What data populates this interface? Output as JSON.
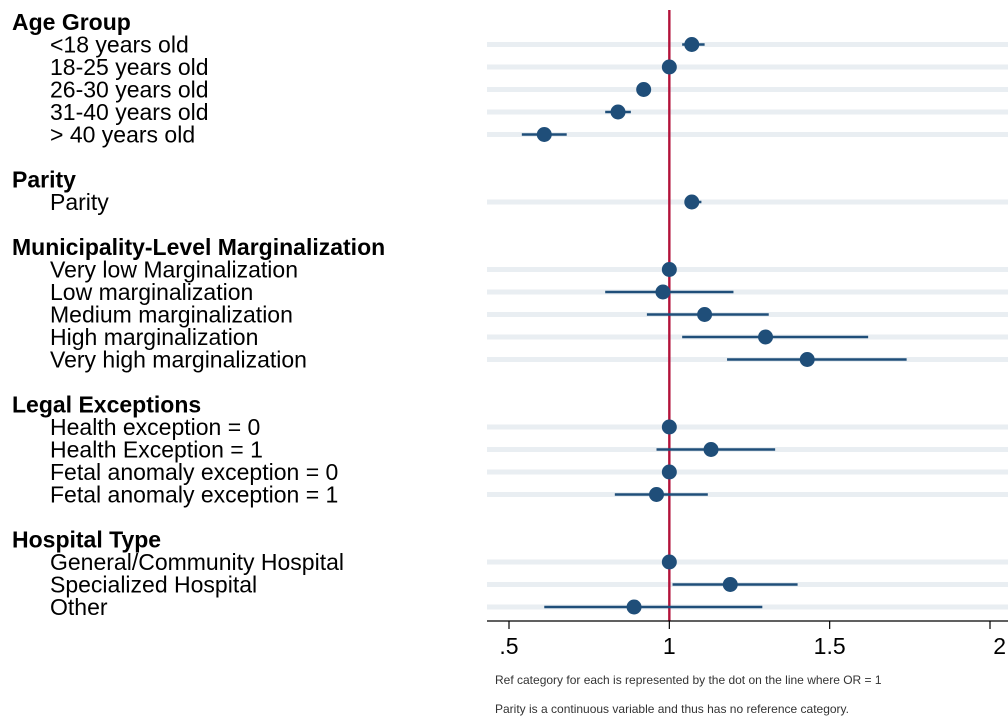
{
  "colors": {
    "point": "#1f4e79",
    "ci_line": "#1f4e79",
    "reference_line": "#b3123a",
    "row_band": "#e9eef2"
  },
  "chart_data": {
    "type": "scatter",
    "subtype": "forest-plot",
    "reference_value": 1,
    "xlim": [
      0.5,
      2
    ],
    "xticks": [
      {
        "value": 0.5,
        "label": ".5"
      },
      {
        "value": 1,
        "label": "1"
      },
      {
        "value": 1.5,
        "label": "1.5"
      },
      {
        "value": 2,
        "label": "2"
      }
    ],
    "grid": false,
    "groups": [
      {
        "label": "Age Group",
        "rows": [
          {
            "label": "<18 years old",
            "estimate": 1.07,
            "lower": 1.04,
            "upper": 1.11
          },
          {
            "label": "18-25 years old",
            "estimate": 1.0,
            "lower": 1.0,
            "upper": 1.0
          },
          {
            "label": "26-30 years old",
            "estimate": 0.92,
            "lower": 0.9,
            "upper": 0.94
          },
          {
            "label": "31-40 years old",
            "estimate": 0.84,
            "lower": 0.8,
            "upper": 0.88
          },
          {
            "label": "> 40 years old",
            "estimate": 0.61,
            "lower": 0.54,
            "upper": 0.68
          }
        ]
      },
      {
        "label": "Parity",
        "rows": [
          {
            "label": "Parity",
            "estimate": 1.07,
            "lower": 1.05,
            "upper": 1.1
          }
        ]
      },
      {
        "label": "Municipality-Level Marginalization",
        "rows": [
          {
            "label": "Very low Marginalization",
            "estimate": 1.0,
            "lower": 1.0,
            "upper": 1.0
          },
          {
            "label": "Low marginalization",
            "estimate": 0.98,
            "lower": 0.8,
            "upper": 1.2
          },
          {
            "label": "Medium marginalization",
            "estimate": 1.11,
            "lower": 0.93,
            "upper": 1.31
          },
          {
            "label": "High marginalization",
            "estimate": 1.3,
            "lower": 1.04,
            "upper": 1.62
          },
          {
            "label": "Very high marginalization",
            "estimate": 1.43,
            "lower": 1.18,
            "upper": 1.74
          }
        ]
      },
      {
        "label": "Legal Exceptions",
        "rows": [
          {
            "label": "Health exception = 0",
            "estimate": 1.0,
            "lower": 1.0,
            "upper": 1.0
          },
          {
            "label": "Health Exception =  1",
            "estimate": 1.13,
            "lower": 0.96,
            "upper": 1.33
          },
          {
            "label": "Fetal anomaly exception = 0",
            "estimate": 1.0,
            "lower": 1.0,
            "upper": 1.0
          },
          {
            "label": "Fetal anomaly exception = 1",
            "estimate": 0.96,
            "lower": 0.83,
            "upper": 1.12
          }
        ]
      },
      {
        "label": "Hospital Type",
        "rows": [
          {
            "label": "General/Community Hospital",
            "estimate": 1.0,
            "lower": 1.0,
            "upper": 1.0
          },
          {
            "label": "Specialized Hospital",
            "estimate": 1.19,
            "lower": 1.01,
            "upper": 1.4
          },
          {
            "label": "Other",
            "estimate": 0.89,
            "lower": 0.61,
            "upper": 1.29
          }
        ]
      }
    ],
    "notes": [
      "Ref category for each is represented by the dot on the line where OR = 1",
      "Parity is a continuous variable and thus has no reference category."
    ]
  }
}
